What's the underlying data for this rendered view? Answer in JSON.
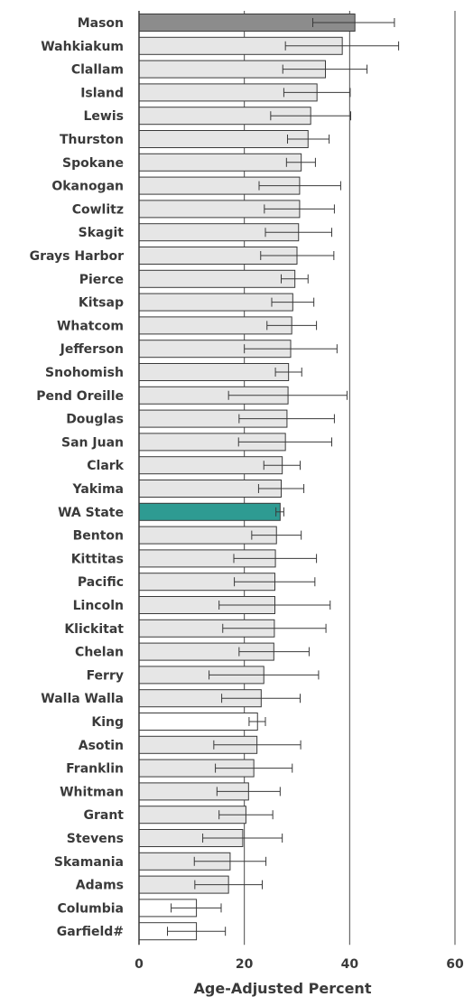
{
  "chart_data": {
    "type": "bar",
    "orientation": "horizontal",
    "title": "",
    "xlabel": "Age-Adjusted Percent",
    "ylabel": "",
    "xlim": [
      0,
      60
    ],
    "xticks": [
      "0",
      "20",
      "40",
      "60"
    ],
    "grid": true,
    "legend": "none",
    "colors": {
      "highlight": "#8c8c8c",
      "state": "#2e9b92",
      "default": "#e6e6e6",
      "unstable": "#ffffff",
      "border": "#3a3a3a",
      "grid": "#4a4a4a"
    },
    "bars": [
      {
        "label": "Mason",
        "value": 41.0,
        "ci": [
          33.0,
          48.5
        ],
        "style": "highlight"
      },
      {
        "label": "Wahkiakum",
        "value": 38.6,
        "ci": [
          27.8,
          49.3
        ],
        "style": "default"
      },
      {
        "label": "Clallam",
        "value": 35.4,
        "ci": [
          27.3,
          43.3
        ],
        "style": "default"
      },
      {
        "label": "Island",
        "value": 33.8,
        "ci": [
          27.5,
          40.1
        ],
        "style": "default"
      },
      {
        "label": "Lewis",
        "value": 32.6,
        "ci": [
          25.0,
          40.2
        ],
        "style": "default"
      },
      {
        "label": "Thurston",
        "value": 32.1,
        "ci": [
          28.2,
          36.1
        ],
        "style": "default"
      },
      {
        "label": "Spokane",
        "value": 30.8,
        "ci": [
          28.0,
          33.5
        ],
        "style": "default"
      },
      {
        "label": "Okanogan",
        "value": 30.5,
        "ci": [
          22.8,
          38.3
        ],
        "style": "default"
      },
      {
        "label": "Cowlitz",
        "value": 30.5,
        "ci": [
          23.8,
          37.1
        ],
        "style": "default"
      },
      {
        "label": "Skagit",
        "value": 30.3,
        "ci": [
          24.0,
          36.6
        ],
        "style": "default"
      },
      {
        "label": "Grays Harbor",
        "value": 30.0,
        "ci": [
          23.1,
          37.0
        ],
        "style": "default"
      },
      {
        "label": "Pierce",
        "value": 29.6,
        "ci": [
          27.0,
          32.1
        ],
        "style": "default"
      },
      {
        "label": "Kitsap",
        "value": 29.2,
        "ci": [
          25.2,
          33.2
        ],
        "style": "default"
      },
      {
        "label": "Whatcom",
        "value": 29.0,
        "ci": [
          24.3,
          33.7
        ],
        "style": "default"
      },
      {
        "label": "Jefferson",
        "value": 28.8,
        "ci": [
          20.0,
          37.6
        ],
        "style": "default"
      },
      {
        "label": "Snohomish",
        "value": 28.4,
        "ci": [
          25.9,
          30.9
        ],
        "style": "default"
      },
      {
        "label": "Pend Oreille",
        "value": 28.3,
        "ci": [
          17.0,
          39.5
        ],
        "style": "default"
      },
      {
        "label": "Douglas",
        "value": 28.1,
        "ci": [
          19.0,
          37.1
        ],
        "style": "default"
      },
      {
        "label": "San Juan",
        "value": 27.8,
        "ci": [
          18.9,
          36.6
        ],
        "style": "default"
      },
      {
        "label": "Clark",
        "value": 27.2,
        "ci": [
          23.7,
          30.6
        ],
        "style": "default"
      },
      {
        "label": "Yakima",
        "value": 27.0,
        "ci": [
          22.7,
          31.3
        ],
        "style": "default"
      },
      {
        "label": "WA State",
        "value": 26.8,
        "ci": [
          26.0,
          27.5
        ],
        "style": "state"
      },
      {
        "label": "Benton",
        "value": 26.1,
        "ci": [
          21.4,
          30.8
        ],
        "style": "default"
      },
      {
        "label": "Kittitas",
        "value": 25.9,
        "ci": [
          18.0,
          33.7
        ],
        "style": "default"
      },
      {
        "label": "Pacific",
        "value": 25.8,
        "ci": [
          18.1,
          33.4
        ],
        "style": "default"
      },
      {
        "label": "Lincoln",
        "value": 25.8,
        "ci": [
          15.2,
          36.3
        ],
        "style": "default"
      },
      {
        "label": "Klickitat",
        "value": 25.7,
        "ci": [
          15.9,
          35.5
        ],
        "style": "default"
      },
      {
        "label": "Chelan",
        "value": 25.6,
        "ci": [
          19.0,
          32.3
        ],
        "style": "default"
      },
      {
        "label": "Ferry",
        "value": 23.7,
        "ci": [
          13.3,
          34.1
        ],
        "style": "default"
      },
      {
        "label": "Walla Walla",
        "value": 23.2,
        "ci": [
          15.7,
          30.6
        ],
        "style": "default"
      },
      {
        "label": "King",
        "value": 22.5,
        "ci": [
          20.9,
          24.0
        ],
        "style": "unstable"
      },
      {
        "label": "Asotin",
        "value": 22.4,
        "ci": [
          14.2,
          30.7
        ],
        "style": "default"
      },
      {
        "label": "Franklin",
        "value": 21.8,
        "ci": [
          14.5,
          29.1
        ],
        "style": "default"
      },
      {
        "label": "Whitman",
        "value": 20.8,
        "ci": [
          14.8,
          26.8
        ],
        "style": "default"
      },
      {
        "label": "Grant",
        "value": 20.3,
        "ci": [
          15.2,
          25.4
        ],
        "style": "default"
      },
      {
        "label": "Stevens",
        "value": 19.7,
        "ci": [
          12.1,
          27.2
        ],
        "style": "default"
      },
      {
        "label": "Skamania",
        "value": 17.3,
        "ci": [
          10.5,
          24.1
        ],
        "style": "default"
      },
      {
        "label": "Adams",
        "value": 17.0,
        "ci": [
          10.6,
          23.4
        ],
        "style": "default"
      },
      {
        "label": "Columbia",
        "value": 10.9,
        "ci": [
          6.1,
          15.6
        ],
        "style": "unstable"
      },
      {
        "label": "Garfield#",
        "value": 10.9,
        "ci": [
          5.4,
          16.4
        ],
        "style": "unstable"
      }
    ]
  }
}
